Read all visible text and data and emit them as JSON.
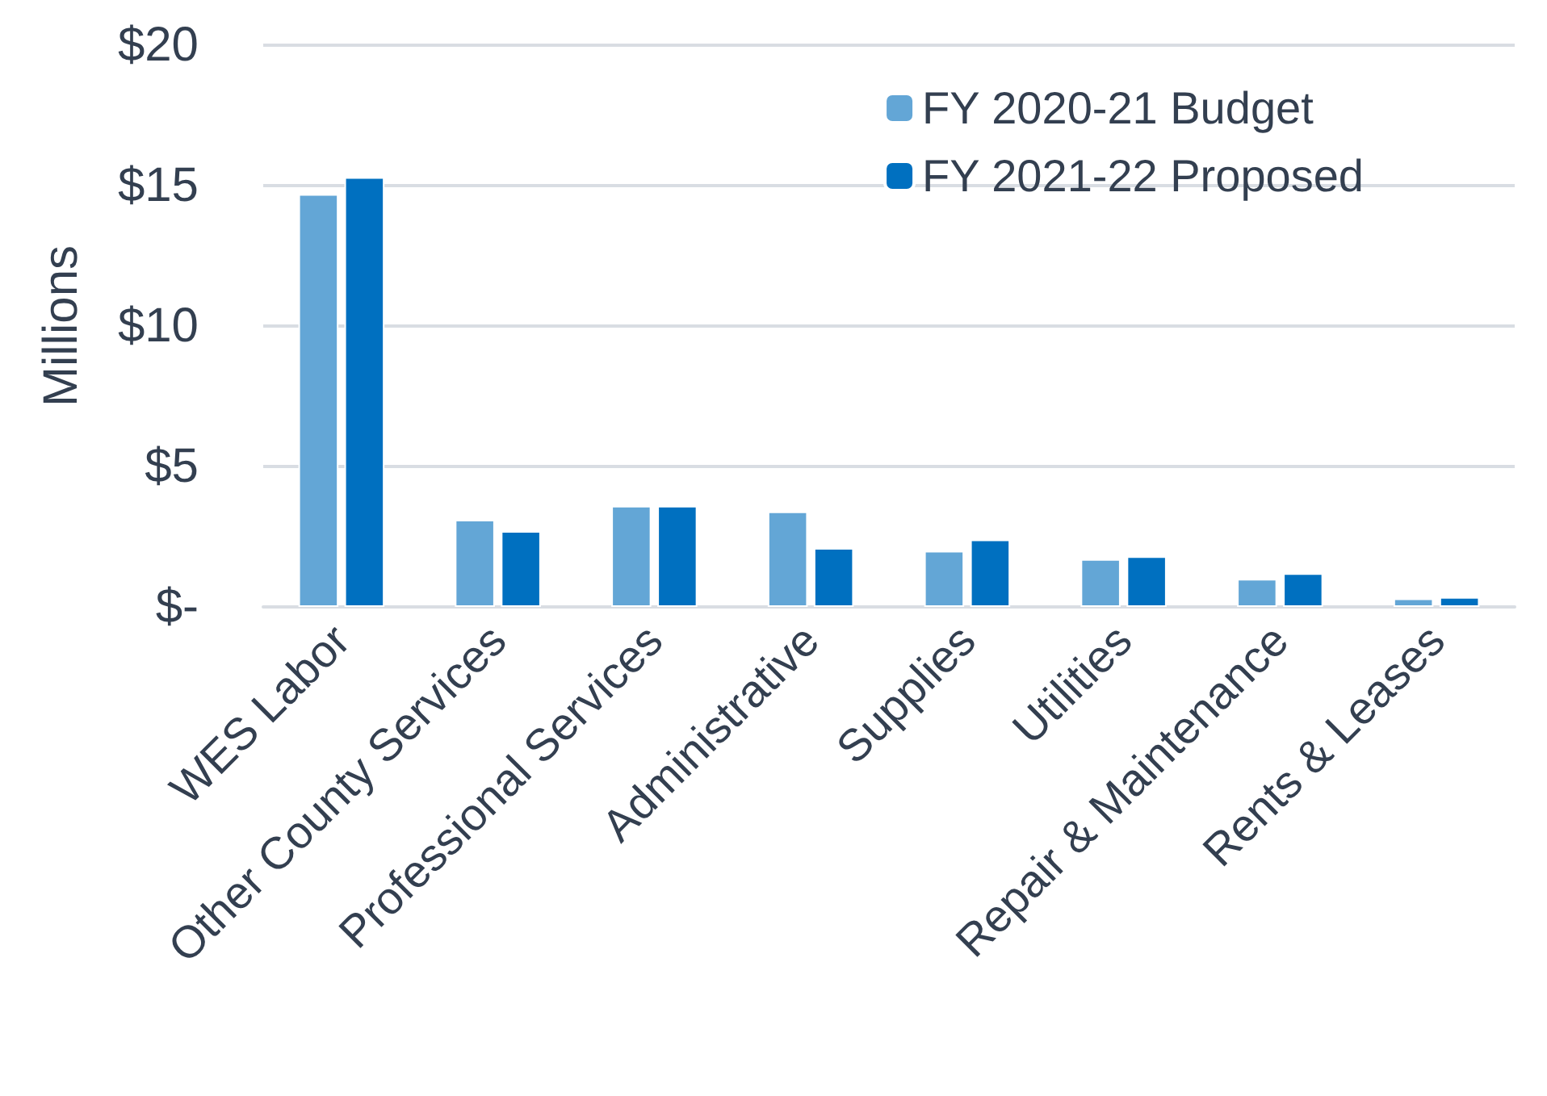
{
  "chart_data": {
    "type": "bar",
    "ylabel": "Millions",
    "categories": [
      "WES Labor",
      "Other County Services",
      "Professional Services",
      "Administrative",
      "Supplies",
      "Utilities",
      "Repair & Maintenance",
      "Rents & Leases"
    ],
    "series": [
      {
        "name": "FY 2020-21 Budget",
        "color": "#63a6d6",
        "values": [
          14.7,
          3.1,
          3.6,
          3.4,
          2.0,
          1.7,
          1.0,
          0.3
        ]
      },
      {
        "name": "FY 2021-22 Proposed",
        "color": "#0070c0",
        "values": [
          15.3,
          2.7,
          3.6,
          2.1,
          2.4,
          1.8,
          1.2,
          0.35
        ]
      }
    ],
    "ylim": [
      0,
      20
    ],
    "yticks": [
      {
        "value": 0,
        "label": "$-"
      },
      {
        "value": 5,
        "label": "$5"
      },
      {
        "value": 10,
        "label": "$10"
      },
      {
        "value": 15,
        "label": "$15"
      },
      {
        "value": 20,
        "label": "$20"
      }
    ],
    "grid": "y",
    "legend": "top right"
  }
}
